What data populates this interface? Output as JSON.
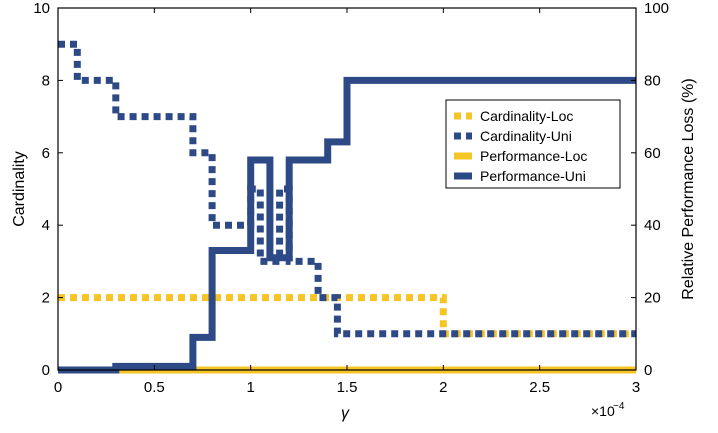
{
  "chart_data": {
    "type": "line",
    "xlabel": "γ",
    "x_scale_label": "×10",
    "x_scale_exp": "−4",
    "ylabel_left": "Cardinality",
    "ylabel_right": "Relative Performance Loss (%)",
    "xlim": [
      0,
      3
    ],
    "ylim_left": [
      0,
      10
    ],
    "ylim_right": [
      0,
      100
    ],
    "x_ticks": [
      "0",
      "0.5",
      "1",
      "1.5",
      "2",
      "2.5",
      "3"
    ],
    "y_ticks_left": [
      "0",
      "2",
      "4",
      "6",
      "8",
      "10"
    ],
    "y_ticks_right": [
      "0",
      "20",
      "40",
      "60",
      "80",
      "100"
    ],
    "legend_position": "right",
    "series": [
      {
        "name": "Cardinality-Loc",
        "axis": "left",
        "style": "dotted",
        "color": "#f5c425",
        "points": [
          [
            0,
            2
          ],
          [
            2.0,
            2
          ],
          [
            2.0,
            1
          ],
          [
            3.0,
            1
          ]
        ]
      },
      {
        "name": "Cardinality-Uni",
        "axis": "left",
        "style": "dotted",
        "color": "#2e4a86",
        "points": [
          [
            0,
            9
          ],
          [
            0.1,
            9
          ],
          [
            0.1,
            8
          ],
          [
            0.3,
            8
          ],
          [
            0.3,
            7
          ],
          [
            0.7,
            7
          ],
          [
            0.7,
            6
          ],
          [
            0.8,
            6
          ],
          [
            0.8,
            4
          ],
          [
            1.0,
            4
          ],
          [
            1.0,
            5
          ],
          [
            1.05,
            5
          ],
          [
            1.05,
            3
          ],
          [
            1.15,
            3
          ],
          [
            1.15,
            5
          ],
          [
            1.2,
            5
          ],
          [
            1.2,
            3
          ],
          [
            1.35,
            3
          ],
          [
            1.35,
            2
          ],
          [
            1.45,
            2
          ],
          [
            1.45,
            1
          ],
          [
            3.0,
            1
          ]
        ]
      },
      {
        "name": "Performance-Loc",
        "axis": "right",
        "style": "solid",
        "color": "#f5c425",
        "points": [
          [
            0,
            0
          ],
          [
            3.0,
            0
          ]
        ]
      },
      {
        "name": "Performance-Uni",
        "axis": "right",
        "style": "solid",
        "color": "#2e4a86",
        "points": [
          [
            0,
            0
          ],
          [
            0.3,
            0
          ],
          [
            0.3,
            1
          ],
          [
            0.7,
            1
          ],
          [
            0.7,
            9
          ],
          [
            0.8,
            9
          ],
          [
            0.8,
            33
          ],
          [
            1.0,
            33
          ],
          [
            1.0,
            58
          ],
          [
            1.1,
            58
          ],
          [
            1.1,
            31
          ],
          [
            1.2,
            31
          ],
          [
            1.2,
            58
          ],
          [
            1.4,
            58
          ],
          [
            1.4,
            63
          ],
          [
            1.5,
            63
          ],
          [
            1.5,
            80
          ],
          [
            3.0,
            80
          ]
        ]
      }
    ]
  }
}
